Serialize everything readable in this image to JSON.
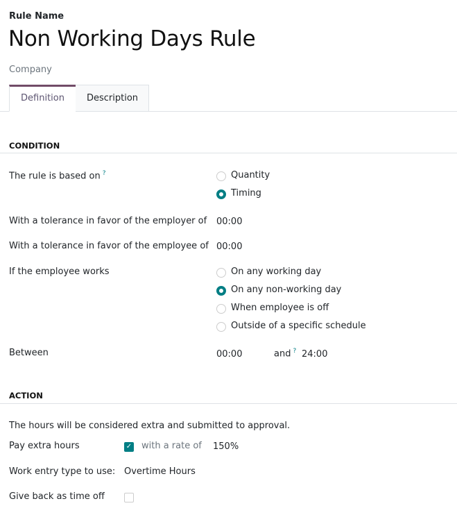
{
  "header": {
    "field_label": "Rule Name",
    "title": "Non Working Days Rule",
    "company_placeholder": "Company"
  },
  "tabs": [
    {
      "label": "Definition",
      "active": true
    },
    {
      "label": "Description",
      "active": false
    }
  ],
  "condition": {
    "section": "CONDITION",
    "based_on_label": "The rule is based on",
    "help": "?",
    "based_on_options": [
      {
        "label": "Quantity",
        "selected": false
      },
      {
        "label": "Timing",
        "selected": true
      }
    ],
    "tolerance_employer_label": "With a tolerance in favor of the employer of",
    "tolerance_employer": "00:00",
    "tolerance_employee_label": "With a tolerance in favor of the employee of",
    "tolerance_employee": "00:00",
    "works_label": "If the employee works",
    "works_options": [
      {
        "label": "On any working day",
        "selected": false
      },
      {
        "label": "On any non-working day",
        "selected": true
      },
      {
        "label": "When employee is off",
        "selected": false
      },
      {
        "label": "Outside of a specific schedule",
        "selected": false
      }
    ],
    "between_label": "Between",
    "between_start": "00:00",
    "and_label": "and",
    "between_end": "24:00"
  },
  "action": {
    "section": "ACTION",
    "note": "The hours will be considered extra and submitted to approval.",
    "pay_label": "Pay extra hours",
    "pay_checked": true,
    "rate_label": "with a rate of",
    "rate": "150%",
    "work_entry_label": "Work entry type to use:",
    "work_entry": "Overtime Hours",
    "give_back_label": "Give back as time off",
    "give_back_checked": false
  },
  "colors": {
    "accent": "#017e84",
    "tab_active": "#714b67"
  },
  "icons": {
    "check": "check-icon",
    "help": "question-mark-icon"
  }
}
